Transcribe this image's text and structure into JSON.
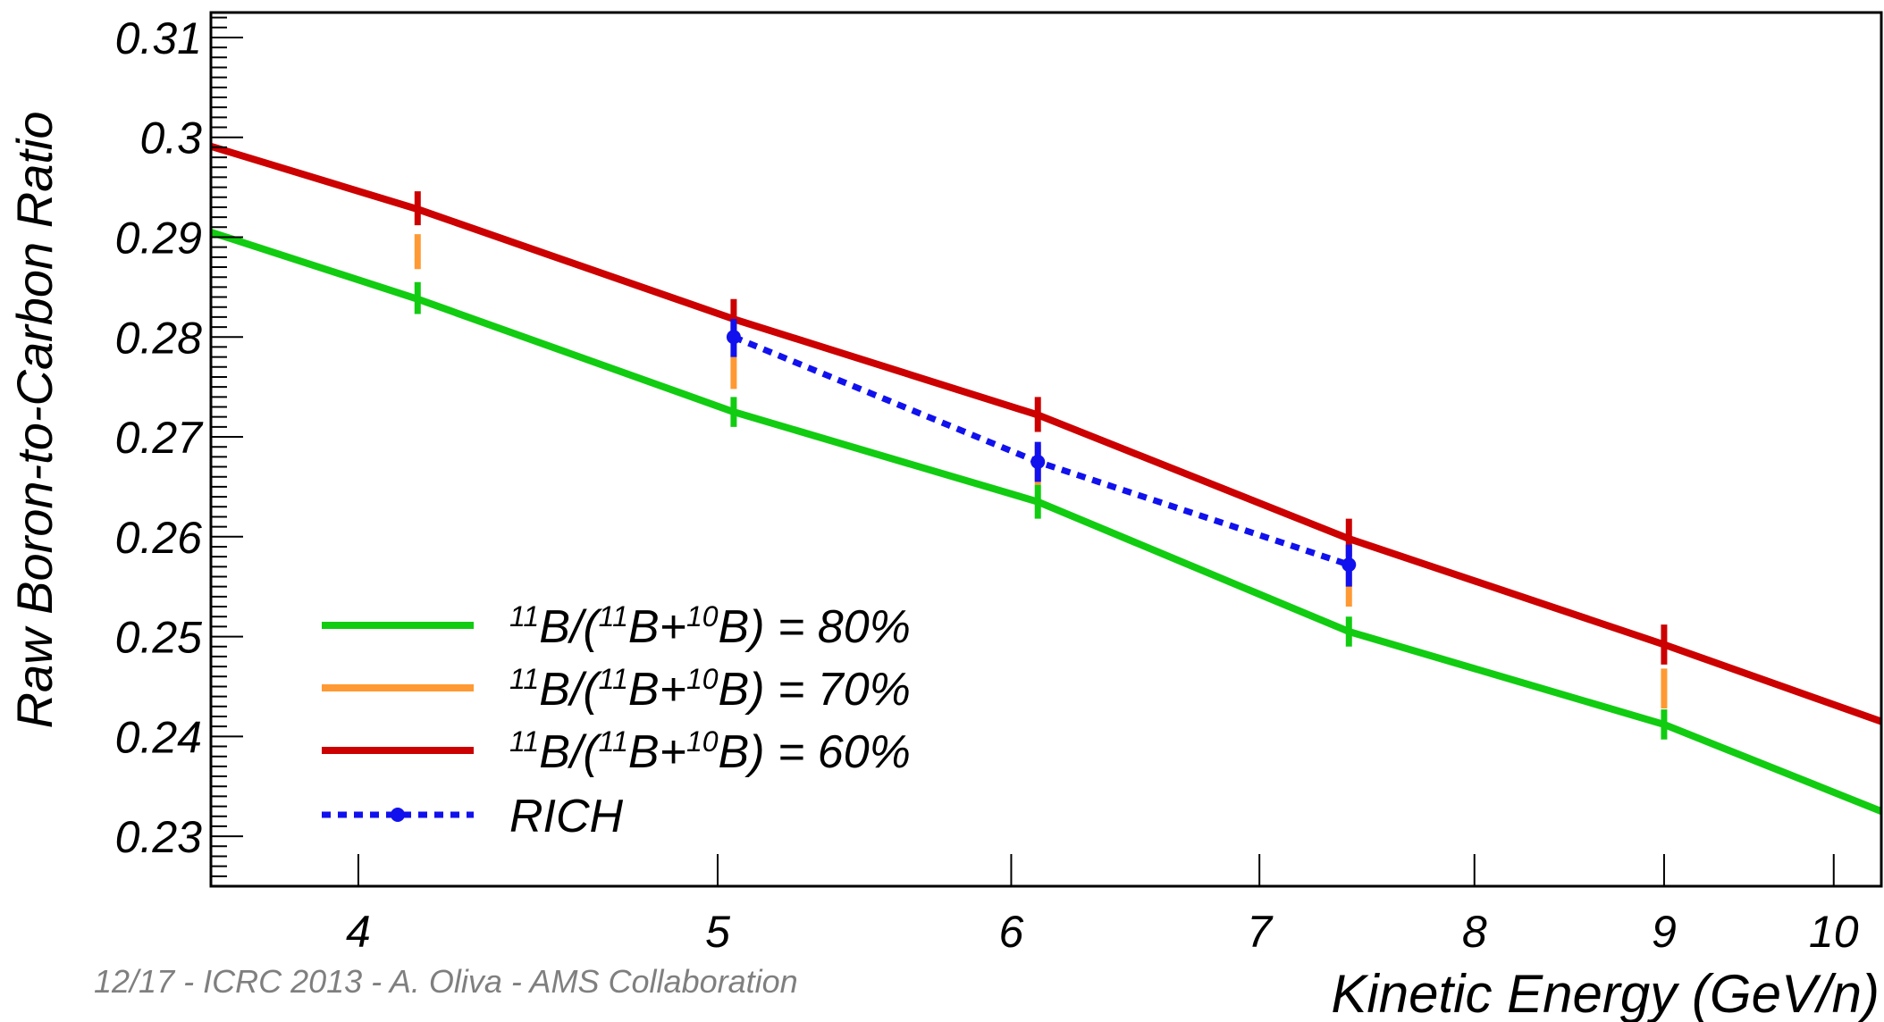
{
  "chart_data": {
    "type": "line",
    "title": "",
    "xlabel": "Kinetic Energy (GeV/n)",
    "ylabel": "Raw Boron-to-Carbon Ratio",
    "x_scale": "log",
    "xlim": [
      3.65,
      10.3
    ],
    "ylim": [
      0.225,
      0.3125
    ],
    "x_ticks": [
      4,
      5,
      6,
      7,
      8,
      9,
      10
    ],
    "y_ticks": [
      0.23,
      0.24,
      0.25,
      0.26,
      0.27,
      0.28,
      0.29,
      0.3,
      0.31
    ],
    "legend_position": "bottom-left",
    "grid": false,
    "series": [
      {
        "name": "11B/(11B+10B) = 80%",
        "legend_parts": [
          "11",
          "B/(",
          "11",
          "B+",
          "10",
          "B) = 80%"
        ],
        "color": "#11cc11",
        "style": "solid",
        "x": [
          3.65,
          4.15,
          5.05,
          6.1,
          7.4,
          9.0,
          10.3
        ],
        "y": [
          0.2905,
          0.2838,
          0.2725,
          0.2635,
          0.2505,
          0.2412,
          0.2325
        ],
        "error_x": [
          4.15,
          5.05,
          6.1,
          7.4,
          9.0
        ],
        "error_low": [
          0.2823,
          0.271,
          0.2618,
          0.249,
          0.2397
        ],
        "error_high": [
          0.2855,
          0.274,
          0.2652,
          0.252,
          0.2427
        ]
      },
      {
        "name": "11B/(11B+10B) = 70%",
        "legend_parts": [
          "11",
          "B/(",
          "11",
          "B+",
          "10",
          "B) = 70%"
        ],
        "color": "#ff9933",
        "style": "errors-only",
        "x": [
          4.15,
          5.05,
          6.1,
          7.4,
          9.0
        ],
        "error_low": [
          0.2868,
          0.2748,
          0.2652,
          0.253,
          0.2428
        ],
        "error_high": [
          0.2903,
          0.2782,
          0.2692,
          0.2565,
          0.2468
        ]
      },
      {
        "name": "11B/(11B+10B) = 60%",
        "legend_parts": [
          "11",
          "B/(",
          "11",
          "B+",
          "10",
          "B) = 60%"
        ],
        "color": "#cc0000",
        "style": "solid",
        "x": [
          3.65,
          4.15,
          5.05,
          6.1,
          7.4,
          9.0,
          10.3
        ],
        "y": [
          0.2991,
          0.2928,
          0.2818,
          0.2722,
          0.2598,
          0.2492,
          0.2415
        ],
        "error_x": [
          4.15,
          5.05,
          6.1,
          7.4,
          9.0
        ],
        "error_low": [
          0.2912,
          0.2802,
          0.2705,
          0.258,
          0.2472
        ],
        "error_high": [
          0.2946,
          0.2838,
          0.274,
          0.2618,
          0.2512
        ]
      },
      {
        "name": "RICH",
        "legend_parts": [
          "RICH"
        ],
        "color": "#1111ee",
        "style": "dotted-markers",
        "x": [
          5.05,
          6.1,
          7.4
        ],
        "y": [
          0.28,
          0.2675,
          0.2572
        ],
        "error_low": [
          0.278,
          0.2655,
          0.255
        ],
        "error_high": [
          0.2818,
          0.2695,
          0.2592
        ]
      }
    ]
  },
  "footer": {
    "text": "12/17 - ICRC 2013 - A. Oliva - AMS Collaboration"
  }
}
